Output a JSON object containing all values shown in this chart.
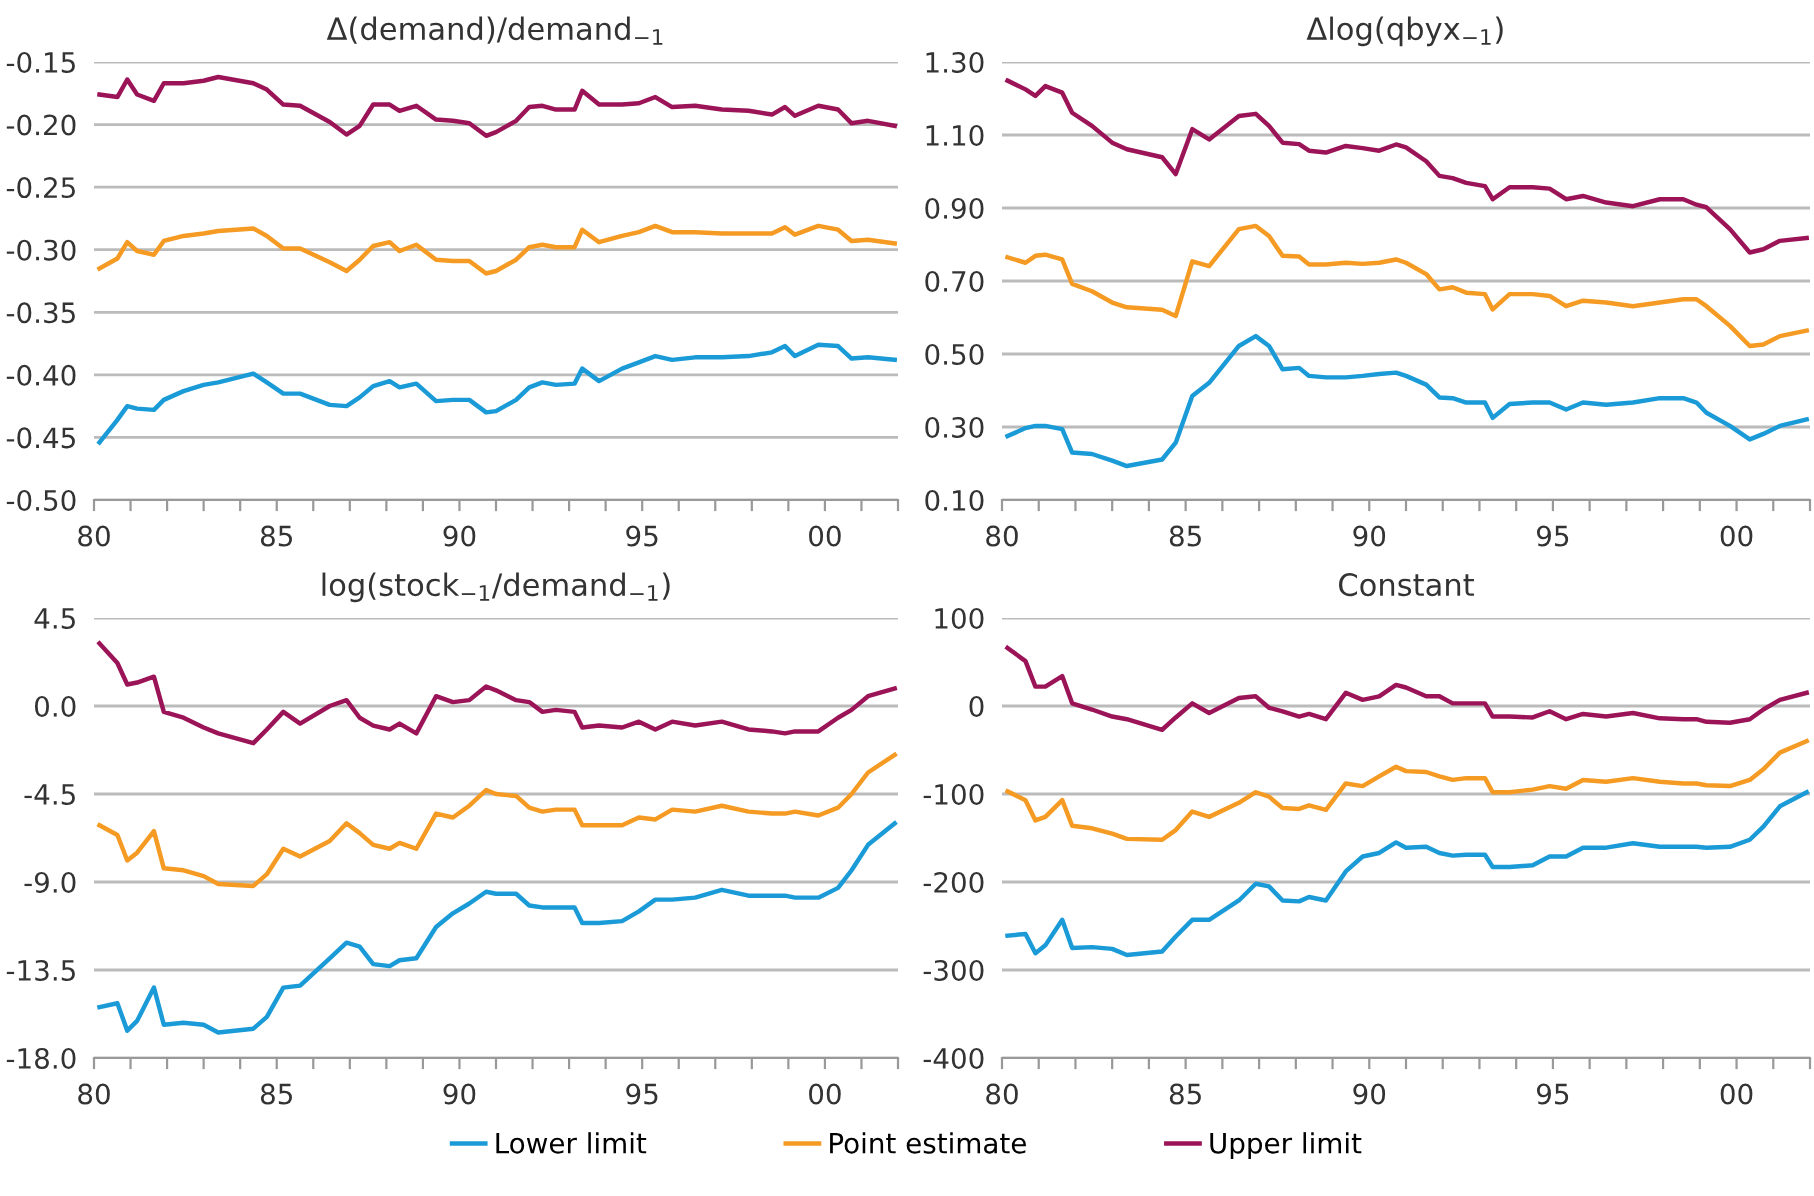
{
  "chart_data": [
    {
      "type": "line",
      "title": "Δ(demand)/demand$_{−1}$",
      "grid": "y",
      "legend": "bottom",
      "x": [
        1980.15,
        1980.64,
        1980.91,
        1981.18,
        1981.64,
        1981.91,
        1982.45,
        1983.0,
        1983.4,
        1984.36,
        1984.73,
        1985.18,
        1985.64,
        1986.45,
        1986.91,
        1987.27,
        1987.64,
        1988.09,
        1988.36,
        1988.82,
        1989.36,
        1989.82,
        1990.27,
        1990.73,
        1991.0,
        1991.55,
        1991.91,
        1992.27,
        1992.64,
        1993.15,
        1993.36,
        1993.82,
        1994.45,
        1994.91,
        1995.36,
        1995.82,
        1996.45,
        1997.18,
        1997.91,
        1998.55,
        1998.91,
        1999.18,
        1999.82,
        2000.36,
        2000.73,
        2001.18,
        2001.91
      ],
      "series": [
        {
          "name": "Lower limit",
          "color": "#1a9bd7",
          "values": [
            -0.454,
            -0.436,
            -0.425,
            -0.427,
            -0.428,
            -0.42,
            -0.413,
            -0.408,
            -0.406,
            -0.399,
            -0.406,
            -0.415,
            -0.415,
            -0.424,
            -0.425,
            -0.418,
            -0.409,
            -0.405,
            -0.41,
            -0.407,
            -0.421,
            -0.42,
            -0.42,
            -0.43,
            -0.429,
            -0.42,
            -0.41,
            -0.406,
            -0.408,
            -0.407,
            -0.395,
            -0.405,
            -0.395,
            -0.39,
            -0.385,
            -0.388,
            -0.386,
            -0.386,
            -0.385,
            -0.382,
            -0.377,
            -0.385,
            -0.376,
            -0.377,
            -0.387,
            -0.386,
            -0.388
          ]
        },
        {
          "name": "Point estimate",
          "color": "#f59a23",
          "values": [
            -0.315,
            -0.307,
            -0.294,
            -0.301,
            -0.304,
            -0.293,
            -0.289,
            -0.287,
            -0.285,
            -0.283,
            -0.289,
            -0.299,
            -0.299,
            -0.31,
            -0.317,
            -0.308,
            -0.297,
            -0.294,
            -0.301,
            -0.296,
            -0.308,
            -0.309,
            -0.309,
            -0.319,
            -0.317,
            -0.308,
            -0.298,
            -0.296,
            -0.298,
            -0.298,
            -0.284,
            -0.294,
            -0.289,
            -0.286,
            -0.281,
            -0.286,
            -0.286,
            -0.287,
            -0.287,
            -0.287,
            -0.282,
            -0.288,
            -0.281,
            -0.284,
            -0.293,
            -0.292,
            -0.295
          ]
        },
        {
          "name": "Upper limit",
          "color": "#9c1458",
          "values": [
            -0.176,
            -0.178,
            -0.164,
            -0.176,
            -0.181,
            -0.167,
            -0.167,
            -0.165,
            -0.162,
            -0.167,
            -0.172,
            -0.184,
            -0.185,
            -0.198,
            -0.208,
            -0.201,
            -0.184,
            -0.184,
            -0.189,
            -0.185,
            -0.196,
            -0.197,
            -0.199,
            -0.209,
            -0.206,
            -0.197,
            -0.186,
            -0.185,
            -0.188,
            -0.188,
            -0.173,
            -0.184,
            -0.184,
            -0.183,
            -0.178,
            -0.186,
            -0.185,
            -0.188,
            -0.189,
            -0.192,
            -0.186,
            -0.193,
            -0.185,
            -0.188,
            -0.199,
            -0.197,
            -0.201
          ]
        }
      ],
      "xlim": [
        1980,
        2002
      ],
      "xticks": [
        {
          "value": 1980,
          "label": "80"
        },
        {
          "value": 1981,
          "label": null
        },
        {
          "value": 1982,
          "label": null
        },
        {
          "value": 1983,
          "label": null
        },
        {
          "value": 1984,
          "label": null
        },
        {
          "value": 1985,
          "label": "85"
        },
        {
          "value": 1986,
          "label": null
        },
        {
          "value": 1987,
          "label": null
        },
        {
          "value": 1988,
          "label": null
        },
        {
          "value": 1989,
          "label": null
        },
        {
          "value": 1990,
          "label": "90"
        },
        {
          "value": 1991,
          "label": null
        },
        {
          "value": 1992,
          "label": null
        },
        {
          "value": 1993,
          "label": null
        },
        {
          "value": 1994,
          "label": null
        },
        {
          "value": 1995,
          "label": "95"
        },
        {
          "value": 1996,
          "label": null
        },
        {
          "value": 1997,
          "label": null
        },
        {
          "value": 1998,
          "label": null
        },
        {
          "value": 1999,
          "label": null
        },
        {
          "value": 2000,
          "label": "00"
        },
        {
          "value": 2001,
          "label": null
        },
        {
          "value": 2002,
          "label": null
        }
      ],
      "ylim": [
        -0.5,
        -0.15
      ],
      "yticks": [
        {
          "value": -0.5,
          "label": "-0.50"
        },
        {
          "value": -0.45,
          "label": "-0.45"
        },
        {
          "value": -0.4,
          "label": "-0.40"
        },
        {
          "value": -0.35,
          "label": "-0.35"
        },
        {
          "value": -0.3,
          "label": "-0.30"
        },
        {
          "value": -0.25,
          "label": "-0.25"
        },
        {
          "value": -0.2,
          "label": "-0.20"
        },
        {
          "value": -0.15,
          "label": "-0.15"
        }
      ]
    },
    {
      "type": "line",
      "title": "Δlog(qbyx$_{−1}$)",
      "grid": "y",
      "x": [
        1980.15,
        1980.64,
        1980.91,
        1981.18,
        1981.64,
        1981.91,
        1982.45,
        1983.0,
        1983.4,
        1984.36,
        1984.73,
        1985.18,
        1985.64,
        1986.45,
        1986.91,
        1987.27,
        1987.64,
        1988.09,
        1988.36,
        1988.82,
        1989.36,
        1989.82,
        1990.27,
        1990.73,
        1991.0,
        1991.55,
        1991.91,
        1992.27,
        1992.64,
        1993.15,
        1993.36,
        1993.82,
        1994.45,
        1994.91,
        1995.36,
        1995.82,
        1996.45,
        1997.18,
        1997.91,
        1998.55,
        1998.91,
        1999.18,
        1999.82,
        2000.36,
        2000.73,
        2001.18,
        2001.91
      ],
      "series": [
        {
          "color": "#1a9bd7",
          "values": [
            0.275,
            0.297,
            0.303,
            0.303,
            0.294,
            0.23,
            0.226,
            0.208,
            0.193,
            0.211,
            0.257,
            0.385,
            0.421,
            0.522,
            0.549,
            0.522,
            0.458,
            0.462,
            0.44,
            0.436,
            0.436,
            0.44,
            0.445,
            0.449,
            0.44,
            0.416,
            0.381,
            0.379,
            0.367,
            0.367,
            0.325,
            0.363,
            0.367,
            0.367,
            0.348,
            0.367,
            0.361,
            0.367,
            0.379,
            0.379,
            0.367,
            0.339,
            0.303,
            0.266,
            0.281,
            0.303,
            0.321
          ]
        },
        {
          "color": "#f59a23",
          "values": [
            0.765,
            0.75,
            0.769,
            0.772,
            0.759,
            0.692,
            0.672,
            0.641,
            0.628,
            0.621,
            0.604,
            0.754,
            0.741,
            0.842,
            0.851,
            0.823,
            0.769,
            0.767,
            0.745,
            0.745,
            0.75,
            0.747,
            0.75,
            0.759,
            0.75,
            0.719,
            0.677,
            0.683,
            0.668,
            0.664,
            0.622,
            0.664,
            0.664,
            0.659,
            0.631,
            0.646,
            0.641,
            0.631,
            0.641,
            0.65,
            0.65,
            0.631,
            0.577,
            0.522,
            0.526,
            0.549,
            0.564
          ]
        },
        {
          "color": "#9c1458",
          "values": [
            1.249,
            1.225,
            1.207,
            1.234,
            1.216,
            1.161,
            1.125,
            1.079,
            1.061,
            1.039,
            0.993,
            1.116,
            1.088,
            1.152,
            1.158,
            1.125,
            1.079,
            1.075,
            1.057,
            1.052,
            1.07,
            1.064,
            1.057,
            1.074,
            1.066,
            1.028,
            0.988,
            0.982,
            0.969,
            0.96,
            0.924,
            0.957,
            0.957,
            0.953,
            0.924,
            0.933,
            0.915,
            0.905,
            0.924,
            0.924,
            0.909,
            0.902,
            0.842,
            0.778,
            0.787,
            0.81,
            0.818
          ]
        }
      ],
      "xlim": [
        1980,
        2002
      ],
      "xticks": [
        {
          "value": 1980,
          "label": "80"
        },
        {
          "value": 1981,
          "label": null
        },
        {
          "value": 1982,
          "label": null
        },
        {
          "value": 1983,
          "label": null
        },
        {
          "value": 1984,
          "label": null
        },
        {
          "value": 1985,
          "label": "85"
        },
        {
          "value": 1986,
          "label": null
        },
        {
          "value": 1987,
          "label": null
        },
        {
          "value": 1988,
          "label": null
        },
        {
          "value": 1989,
          "label": null
        },
        {
          "value": 1990,
          "label": "90"
        },
        {
          "value": 1991,
          "label": null
        },
        {
          "value": 1992,
          "label": null
        },
        {
          "value": 1993,
          "label": null
        },
        {
          "value": 1994,
          "label": null
        },
        {
          "value": 1995,
          "label": "95"
        },
        {
          "value": 1996,
          "label": null
        },
        {
          "value": 1997,
          "label": null
        },
        {
          "value": 1998,
          "label": null
        },
        {
          "value": 1999,
          "label": null
        },
        {
          "value": 2000,
          "label": "00"
        },
        {
          "value": 2001,
          "label": null
        },
        {
          "value": 2002,
          "label": null
        }
      ],
      "ylim": [
        0.1,
        1.3
      ],
      "yticks": [
        {
          "value": 0.1,
          "label": "0.10"
        },
        {
          "value": 0.3,
          "label": "0.30"
        },
        {
          "value": 0.5,
          "label": "0.50"
        },
        {
          "value": 0.7,
          "label": "0.70"
        },
        {
          "value": 0.9,
          "label": "0.90"
        },
        {
          "value": 1.1,
          "label": "1.10"
        },
        {
          "value": 1.3,
          "label": "1.30"
        }
      ]
    },
    {
      "type": "line",
      "title": "log(stock$_{−1}$/demand$_{−1}$)",
      "grid": "y",
      "x": [
        1980.15,
        1980.64,
        1980.91,
        1981.18,
        1981.64,
        1981.91,
        1982.45,
        1983.0,
        1983.4,
        1984.36,
        1984.73,
        1985.18,
        1985.64,
        1986.45,
        1986.91,
        1987.27,
        1987.64,
        1988.09,
        1988.36,
        1988.82,
        1989.36,
        1989.82,
        1990.27,
        1990.73,
        1991.0,
        1991.55,
        1991.91,
        1992.27,
        1992.64,
        1993.15,
        1993.36,
        1993.82,
        1994.45,
        1994.91,
        1995.36,
        1995.82,
        1996.45,
        1997.18,
        1997.91,
        1998.55,
        1998.91,
        1999.18,
        1999.82,
        2000.36,
        2000.73,
        2001.18,
        2001.91
      ],
      "series": [
        {
          "color": "#1a9bd7",
          "values": [
            -15.4,
            -15.2,
            -16.6,
            -16.1,
            -14.4,
            -16.3,
            -16.2,
            -16.3,
            -16.7,
            -16.5,
            -15.9,
            -14.4,
            -14.3,
            -12.9,
            -12.1,
            -12.3,
            -13.2,
            -13.3,
            -13.0,
            -12.9,
            -11.3,
            -10.6,
            -10.1,
            -9.5,
            -9.6,
            -9.6,
            -10.2,
            -10.3,
            -10.3,
            -10.3,
            -11.1,
            -11.1,
            -11.0,
            -10.5,
            -9.9,
            -9.9,
            -9.8,
            -9.4,
            -9.7,
            -9.7,
            -9.7,
            -9.8,
            -9.8,
            -9.3,
            -8.4,
            -7.1,
            -6.0
          ]
        },
        {
          "color": "#f59a23",
          "values": [
            -6.1,
            -6.6,
            -7.9,
            -7.5,
            -6.4,
            -8.3,
            -8.4,
            -8.7,
            -9.1,
            -9.2,
            -8.6,
            -7.3,
            -7.7,
            -6.9,
            -6.0,
            -6.5,
            -7.1,
            -7.3,
            -7.0,
            -7.3,
            -5.5,
            -5.7,
            -5.1,
            -4.3,
            -4.5,
            -4.6,
            -5.2,
            -5.4,
            -5.3,
            -5.3,
            -6.1,
            -6.1,
            -6.1,
            -5.7,
            -5.8,
            -5.3,
            -5.4,
            -5.1,
            -5.4,
            -5.5,
            -5.5,
            -5.4,
            -5.6,
            -5.2,
            -4.5,
            -3.4,
            -2.5
          ]
        },
        {
          "color": "#9c1458",
          "values": [
            3.2,
            2.2,
            1.1,
            1.2,
            1.5,
            -0.3,
            -0.6,
            -1.1,
            -1.4,
            -1.9,
            -1.2,
            -0.3,
            -0.9,
            0.0,
            0.3,
            -0.6,
            -1.0,
            -1.2,
            -0.9,
            -1.4,
            0.5,
            0.2,
            0.3,
            1.0,
            0.8,
            0.3,
            0.2,
            -0.3,
            -0.2,
            -0.3,
            -1.1,
            -1.0,
            -1.1,
            -0.8,
            -1.2,
            -0.8,
            -1.0,
            -0.8,
            -1.2,
            -1.3,
            -1.4,
            -1.3,
            -1.3,
            -0.6,
            -0.2,
            0.5,
            0.9
          ]
        }
      ],
      "xlim": [
        1980,
        2002
      ],
      "xticks": [
        {
          "value": 1980,
          "label": "80"
        },
        {
          "value": 1981,
          "label": null
        },
        {
          "value": 1982,
          "label": null
        },
        {
          "value": 1983,
          "label": null
        },
        {
          "value": 1984,
          "label": null
        },
        {
          "value": 1985,
          "label": "85"
        },
        {
          "value": 1986,
          "label": null
        },
        {
          "value": 1987,
          "label": null
        },
        {
          "value": 1988,
          "label": null
        },
        {
          "value": 1989,
          "label": null
        },
        {
          "value": 1990,
          "label": "90"
        },
        {
          "value": 1991,
          "label": null
        },
        {
          "value": 1992,
          "label": null
        },
        {
          "value": 1993,
          "label": null
        },
        {
          "value": 1994,
          "label": null
        },
        {
          "value": 1995,
          "label": "95"
        },
        {
          "value": 1996,
          "label": null
        },
        {
          "value": 1997,
          "label": null
        },
        {
          "value": 1998,
          "label": null
        },
        {
          "value": 1999,
          "label": null
        },
        {
          "value": 2000,
          "label": "00"
        },
        {
          "value": 2001,
          "label": null
        },
        {
          "value": 2002,
          "label": null
        }
      ],
      "ylim": [
        -18.0,
        4.5
      ],
      "yticks": [
        {
          "value": -18.0,
          "label": "-18.0"
        },
        {
          "value": -13.5,
          "label": "-13.5"
        },
        {
          "value": -9.0,
          "label": "-9.0"
        },
        {
          "value": -4.5,
          "label": "-4.5"
        },
        {
          "value": 0.0,
          "label": "0.0"
        },
        {
          "value": 4.5,
          "label": "4.5"
        }
      ]
    },
    {
      "type": "line",
      "title": "Constant",
      "grid": "y",
      "x": [
        1980.15,
        1980.64,
        1980.91,
        1981.18,
        1981.64,
        1981.91,
        1982.45,
        1983.0,
        1983.4,
        1984.36,
        1984.73,
        1985.18,
        1985.64,
        1986.45,
        1986.91,
        1987.27,
        1987.64,
        1988.09,
        1988.36,
        1988.82,
        1989.36,
        1989.82,
        1990.27,
        1990.73,
        1991.0,
        1991.55,
        1991.91,
        1992.27,
        1992.64,
        1993.15,
        1993.36,
        1993.82,
        1994.45,
        1994.91,
        1995.36,
        1995.82,
        1996.45,
        1997.18,
        1997.91,
        1998.55,
        1998.91,
        1999.18,
        1999.82,
        2000.36,
        2000.73,
        2001.18,
        2001.91
      ],
      "series": [
        {
          "color": "#1a9bd7",
          "values": [
            -261,
            -259,
            -281,
            -272,
            -243,
            -275,
            -274,
            -276,
            -283,
            -279,
            -262,
            -243,
            -243,
            -221,
            -202,
            -205,
            -221,
            -222,
            -217,
            -221,
            -188,
            -171,
            -167,
            -155,
            -161,
            -160,
            -167,
            -170,
            -169,
            -169,
            -183,
            -183,
            -181,
            -171,
            -171,
            -161,
            -161,
            -156,
            -160,
            -160,
            -160,
            -161,
            -160,
            -152,
            -137,
            -114,
            -98
          ]
        },
        {
          "color": "#f59a23",
          "values": [
            -97,
            -107,
            -130,
            -126,
            -107,
            -136,
            -139,
            -145,
            -151,
            -152,
            -141,
            -120,
            -126,
            -110,
            -98,
            -103,
            -116,
            -117,
            -113,
            -118,
            -88,
            -91,
            -80,
            -69,
            -74,
            -75,
            -80,
            -84,
            -82,
            -82,
            -98,
            -98,
            -95,
            -91,
            -94,
            -84,
            -86,
            -82,
            -86,
            -88,
            -88,
            -90,
            -91,
            -84,
            -72,
            -53,
            -40
          ]
        },
        {
          "color": "#9c1458",
          "values": [
            66,
            51,
            22,
            22,
            34,
            3,
            -4,
            -12,
            -15,
            -27,
            -13,
            3,
            -8,
            9,
            11,
            -2,
            -6,
            -12,
            -9,
            -15,
            15,
            7,
            11,
            24,
            21,
            11,
            11,
            3,
            3,
            3,
            -12,
            -12,
            -13,
            -6,
            -15,
            -9,
            -12,
            -8,
            -14,
            -15,
            -15,
            -18,
            -19,
            -15,
            -4,
            7,
            15
          ]
        }
      ],
      "xlim": [
        1980,
        2002
      ],
      "xticks": [
        {
          "value": 1980,
          "label": "80"
        },
        {
          "value": 1981,
          "label": null
        },
        {
          "value": 1982,
          "label": null
        },
        {
          "value": 1983,
          "label": null
        },
        {
          "value": 1984,
          "label": null
        },
        {
          "value": 1985,
          "label": "85"
        },
        {
          "value": 1986,
          "label": null
        },
        {
          "value": 1987,
          "label": null
        },
        {
          "value": 1988,
          "label": null
        },
        {
          "value": 1989,
          "label": null
        },
        {
          "value": 1990,
          "label": "90"
        },
        {
          "value": 1991,
          "label": null
        },
        {
          "value": 1992,
          "label": null
        },
        {
          "value": 1993,
          "label": null
        },
        {
          "value": 1994,
          "label": null
        },
        {
          "value": 1995,
          "label": "95"
        },
        {
          "value": 1996,
          "label": null
        },
        {
          "value": 1997,
          "label": null
        },
        {
          "value": 1998,
          "label": null
        },
        {
          "value": 1999,
          "label": null
        },
        {
          "value": 2000,
          "label": "00"
        },
        {
          "value": 2001,
          "label": null
        },
        {
          "value": 2002,
          "label": null
        }
      ],
      "ylim": [
        -400,
        100
      ],
      "yticks": [
        -400,
        -300,
        -200,
        -100,
        0,
        100
      ]
    }
  ]
}
